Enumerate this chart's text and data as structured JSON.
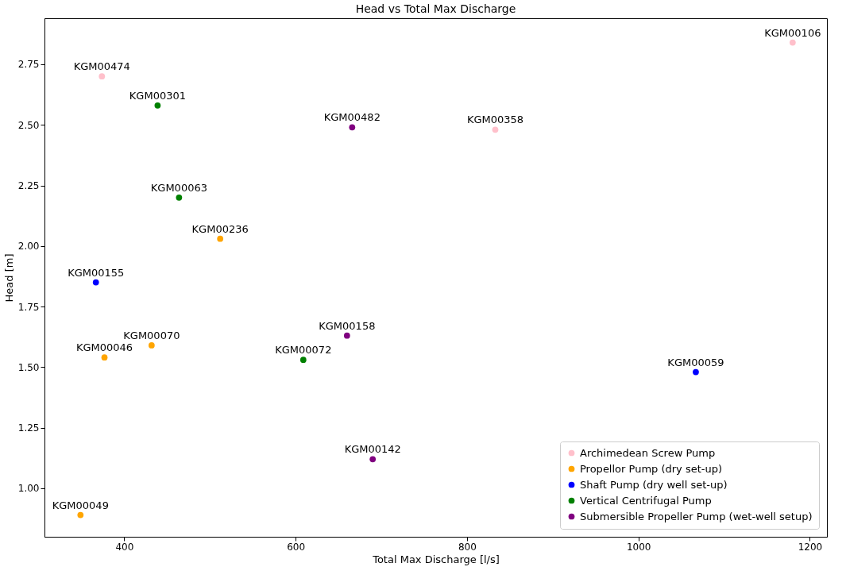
{
  "chart_data": {
    "type": "scatter",
    "title": "Head vs Total Max Discharge",
    "xlabel": "Total Max Discharge [l/s]",
    "ylabel": "Head [m]",
    "xlim": [
      307,
      1220
    ],
    "ylim": [
      0.8,
      2.94
    ],
    "xticks": [
      400,
      600,
      800,
      1000,
      1200
    ],
    "yticks": [
      {
        "value": 1,
        "label": "1.00"
      },
      {
        "value": 1.25,
        "label": "1.25"
      },
      {
        "value": 1.5,
        "label": "1.50"
      },
      {
        "value": 1.75,
        "label": "1.75"
      },
      {
        "value": 2,
        "label": "2.00"
      },
      {
        "value": 2.25,
        "label": "2.25"
      },
      {
        "value": 2.5,
        "label": "2.50"
      },
      {
        "value": 2.75,
        "label": "2.75"
      }
    ],
    "marker": "circle",
    "grid": false,
    "legend": "bottom right",
    "series": [
      {
        "name": "Archimedean Screw Pump",
        "color": "#ffc0cb",
        "x": [
          1180,
          374,
          833
        ],
        "values": [
          2.84,
          2.7,
          2.48
        ]
      },
      {
        "name": "Propellor Pump (dry set-up)",
        "color": "#ffa500",
        "x": [
          512,
          432,
          377,
          349
        ],
        "values": [
          2.03,
          1.59,
          1.54,
          0.89
        ]
      },
      {
        "name": "Shaft Pump (dry well set-up)",
        "color": "#0000ff",
        "x": [
          367,
          1067
        ],
        "values": [
          1.85,
          1.48
        ]
      },
      {
        "name": "Vertical Centrifugal Pump",
        "color": "#008000",
        "x": [
          439,
          464,
          609
        ],
        "values": [
          2.58,
          2.2,
          1.53
        ]
      },
      {
        "name": "Submersible Propeller Pump (wet-well setup)",
        "color": "#800080",
        "x": [
          666,
          660,
          690
        ],
        "values": [
          2.49,
          1.63,
          1.12
        ]
      }
    ],
    "annotations": [
      {
        "text": "KGM00106",
        "x": 1180,
        "y": 2.84
      },
      {
        "text": "KGM00474",
        "x": 374,
        "y": 2.7
      },
      {
        "text": "KGM00358",
        "x": 833,
        "y": 2.48
      },
      {
        "text": "KGM00236",
        "x": 512,
        "y": 2.03
      },
      {
        "text": "KGM00070",
        "x": 432,
        "y": 1.59
      },
      {
        "text": "KGM00046",
        "x": 377,
        "y": 1.54
      },
      {
        "text": "KGM00049",
        "x": 349,
        "y": 0.89
      },
      {
        "text": "KGM00155",
        "x": 367,
        "y": 1.85
      },
      {
        "text": "KGM00059",
        "x": 1067,
        "y": 1.48
      },
      {
        "text": "KGM00301",
        "x": 439,
        "y": 2.58
      },
      {
        "text": "KGM00063",
        "x": 464,
        "y": 2.2
      },
      {
        "text": "KGM00072",
        "x": 609,
        "y": 1.53
      },
      {
        "text": "KGM00482",
        "x": 666,
        "y": 2.49
      },
      {
        "text": "KGM00158",
        "x": 660,
        "y": 1.63
      },
      {
        "text": "KGM00142",
        "x": 690,
        "y": 1.12
      }
    ]
  }
}
